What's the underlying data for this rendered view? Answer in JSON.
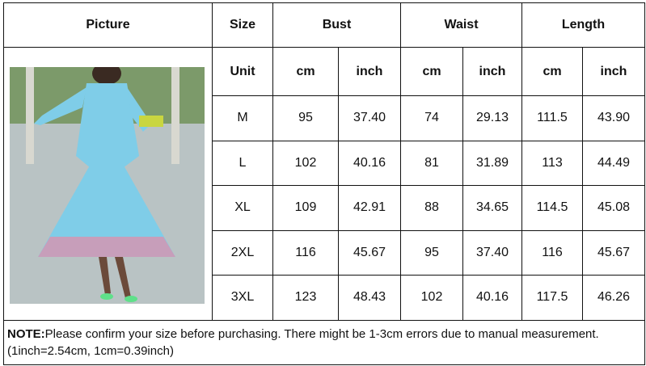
{
  "headers": {
    "picture": "Picture",
    "size": "Size",
    "bust": "Bust",
    "waist": "Waist",
    "length": "Length"
  },
  "units": {
    "label": "Unit",
    "cols": [
      "cm",
      "inch",
      "cm",
      "inch",
      "cm",
      "inch"
    ]
  },
  "rows": [
    [
      "M",
      "95",
      "37.40",
      "74",
      "29.13",
      "111.5",
      "43.90"
    ],
    [
      "L",
      "102",
      "40.16",
      "81",
      "31.89",
      "113",
      "44.49"
    ],
    [
      "XL",
      "109",
      "42.91",
      "88",
      "34.65",
      "114.5",
      "45.08"
    ],
    [
      "2XL",
      "116",
      "45.67",
      "95",
      "37.40",
      "116",
      "45.67"
    ],
    [
      "3XL",
      "123",
      "48.43",
      "102",
      "40.16",
      "117.5",
      "46.26"
    ]
  ],
  "note": {
    "label": "NOTE:",
    "text": "Please confirm your size before purchasing. There might be 1-3cm errors due to manual measurement.  (1inch=2.54cm, 1cm=0.39inch)"
  },
  "colors": {
    "dress": "#7fcde8",
    "border": "#111111"
  }
}
